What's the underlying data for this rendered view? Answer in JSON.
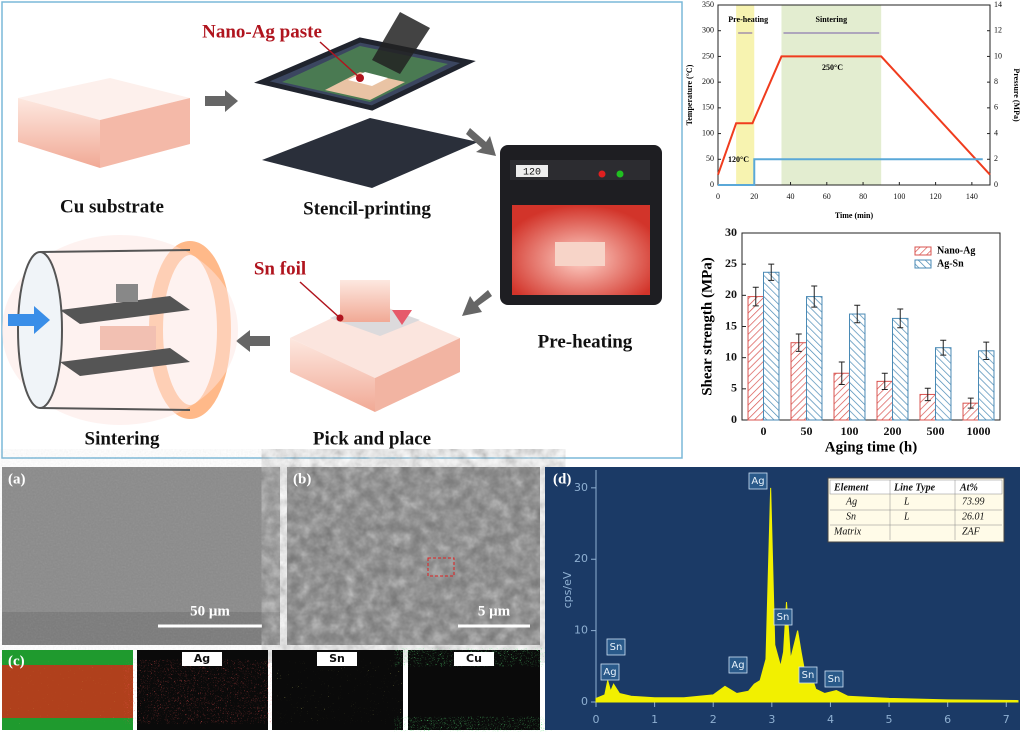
{
  "process": {
    "nano_ag_paste": "Nano-Ag paste",
    "cu_substrate": "Cu substrate",
    "stencil_printing": "Stencil-printing",
    "oven_display": "120",
    "pre_heating": "Pre-heating",
    "sn_foil": "Sn foil",
    "pick_and_place": "Pick and place",
    "sintering": "Sintering"
  },
  "micrographs": {
    "a": {
      "label": "(a)",
      "scale_bar": "50 μm"
    },
    "b": {
      "label": "(b)",
      "scale_bar": "5 μm"
    },
    "c": {
      "label": "(c)",
      "maps": [
        "Ag",
        "Sn",
        "Cu"
      ]
    },
    "d": {
      "label": "(d)"
    }
  },
  "eds_table": {
    "header": [
      "Element",
      "Line Type",
      "At%"
    ],
    "rows": [
      [
        "Ag",
        "L",
        "73.99"
      ],
      [
        "Sn",
        "L",
        "26.01"
      ],
      [
        "Matrix",
        "",
        "ZAF"
      ]
    ]
  },
  "chart_data": [
    {
      "type": "line",
      "x_label": "Time (min)",
      "y_label": "Temperature (°C)",
      "y2_label": "Pressure (MPa)",
      "xlim": [
        0,
        150
      ],
      "xticks": [
        0,
        20,
        40,
        60,
        80,
        100,
        120,
        140
      ],
      "ylim": [
        0,
        350
      ],
      "yticks": [
        0,
        50,
        100,
        150,
        200,
        250,
        300,
        350
      ],
      "y2lim": [
        0,
        14
      ],
      "y2ticks": [
        0,
        2,
        4,
        6,
        8,
        10,
        12,
        14
      ],
      "phases": [
        {
          "label": "Pre-heating",
          "x_range": [
            10,
            20
          ],
          "color": "#f7f3b0"
        },
        {
          "label": "Sintering",
          "x_range": [
            35,
            90
          ],
          "color": "#e3edd0"
        }
      ],
      "annotations": [
        "120°C",
        "250°C"
      ],
      "series": [
        {
          "color": "#f03c1e",
          "x": [
            0,
            10,
            19,
            35,
            90,
            150
          ],
          "values": [
            20,
            120,
            120,
            250,
            250,
            20
          ]
        },
        {
          "color": "#5aa8d8",
          "axis": "y2",
          "x": [
            0,
            20,
            20,
            146
          ],
          "values": [
            0,
            0,
            2,
            2
          ]
        }
      ]
    },
    {
      "type": "bar",
      "x_label": "Aging time (h)",
      "y_label": "Shear strength (MPa)",
      "categories": [
        "0",
        "50",
        "100",
        "200",
        "500",
        "1000"
      ],
      "ylim": [
        0,
        30
      ],
      "yticks": [
        0,
        5,
        10,
        15,
        20,
        25,
        30
      ],
      "legend": "upper right",
      "series": [
        {
          "name": "Nano-Ag",
          "color": "#d9534f",
          "values": [
            19.8,
            12.4,
            7.5,
            6.2,
            4.1,
            2.7
          ],
          "errors": [
            1.5,
            1.4,
            1.8,
            1.3,
            1.0,
            0.8
          ]
        },
        {
          "name": "Ag-Sn",
          "color": "#4a8ab5",
          "values": [
            23.7,
            19.8,
            17.0,
            16.3,
            11.6,
            11.1
          ],
          "errors": [
            1.3,
            1.7,
            1.4,
            1.5,
            1.2,
            1.4
          ]
        }
      ]
    },
    {
      "type": "spectrum",
      "y_label": "cps/eV",
      "xlim": [
        0,
        7.2
      ],
      "xticks": [
        0,
        1,
        2,
        3,
        4,
        5,
        6,
        7
      ],
      "ylim": [
        0,
        32.5
      ],
      "yticks": [
        0,
        10,
        20,
        30
      ],
      "color": "#f2f000",
      "peak_labels": [
        "Sn",
        "Ag",
        "Ag",
        "Ag",
        "Sn",
        "Sn",
        "Sn"
      ],
      "x": [
        0,
        0.15,
        0.2,
        0.25,
        0.3,
        0.4,
        0.6,
        1.0,
        1.5,
        2.0,
        2.2,
        2.4,
        2.6,
        2.7,
        2.8,
        2.9,
        2.98,
        3.05,
        3.15,
        3.2,
        3.25,
        3.32,
        3.44,
        3.5,
        3.6,
        3.66,
        3.75,
        3.9,
        4.1,
        4.3,
        5.0,
        6.0,
        7.2
      ],
      "values": [
        0.5,
        1,
        3,
        1.5,
        2.5,
        1.2,
        0.8,
        0.6,
        0.6,
        1,
        2.2,
        1.2,
        1.5,
        2.5,
        3,
        6,
        30,
        8,
        5,
        7,
        14,
        6,
        10,
        7,
        2.5,
        4,
        1.8,
        1.2,
        1.6,
        0.8,
        0.5,
        0.3,
        0.2
      ]
    }
  ]
}
